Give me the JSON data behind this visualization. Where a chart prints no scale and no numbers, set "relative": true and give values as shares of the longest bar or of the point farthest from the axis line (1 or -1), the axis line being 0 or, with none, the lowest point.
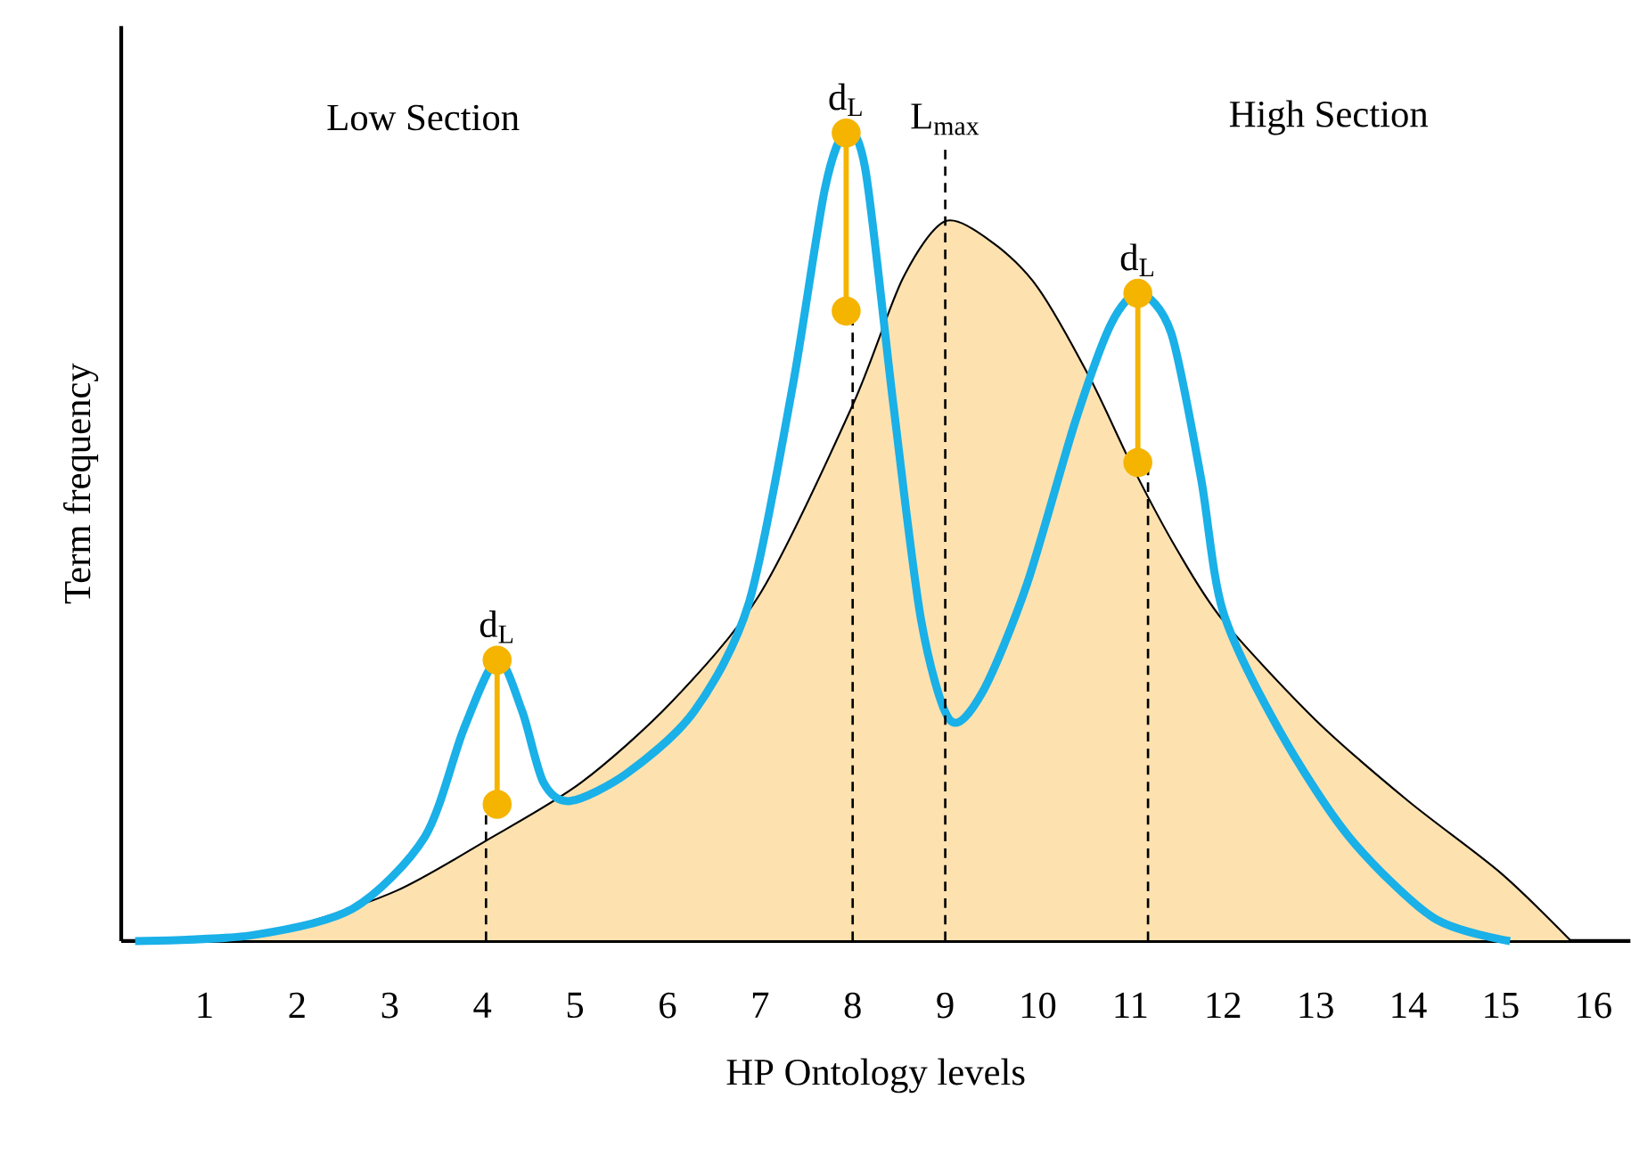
{
  "chart_data": {
    "type": "line",
    "relative": true,
    "xlabel": "HP Ontology levels",
    "ylabel": "Term frequency",
    "xlim": [
      0.1,
      16.4
    ],
    "xticks": [
      1,
      2,
      3,
      4,
      5,
      6,
      7,
      8,
      9,
      10,
      11,
      12,
      13,
      14,
      15,
      16
    ],
    "grid": false,
    "tick_labels": "x",
    "series": [
      {
        "type": "area",
        "color": "#fde2b0",
        "x": [
          0.25,
          1.05,
          1.95,
          3.07,
          4.04,
          5.07,
          6.05,
          7.0,
          8.0,
          8.54,
          9.0,
          9.52,
          10.0,
          10.56,
          11.03,
          11.5,
          12.0,
          13.0,
          14.0,
          15.0,
          15.76
        ],
        "values": [
          0,
          0.002,
          0.018,
          0.062,
          0.124,
          0.196,
          0.296,
          0.429,
          0.662,
          0.818,
          0.889,
          0.862,
          0.807,
          0.696,
          0.584,
          0.484,
          0.396,
          0.273,
          0.173,
          0.084,
          0.0
        ]
      },
      {
        "color": "#1ab0e8",
        "x": [
          0.25,
          1.5,
          2.6,
          3.38,
          3.8,
          4.16,
          4.43,
          4.66,
          4.95,
          5.56,
          6.29,
          6.88,
          7.35,
          7.7,
          7.93,
          8.14,
          8.44,
          8.74,
          9.05,
          9.4,
          9.88,
          10.4,
          10.79,
          11.1,
          11.44,
          11.76,
          12.0,
          12.6,
          13.36,
          14.27,
          15.1
        ],
        "values": [
          0,
          0.007,
          0.04,
          0.129,
          0.262,
          0.347,
          0.284,
          0.196,
          0.173,
          0.207,
          0.284,
          0.418,
          0.684,
          0.929,
          1.0,
          0.951,
          0.662,
          0.396,
          0.273,
          0.307,
          0.44,
          0.64,
          0.762,
          0.8,
          0.751,
          0.573,
          0.407,
          0.262,
          0.129,
          0.029,
          0
        ]
      },
      {
        "color": "#f5b400",
        "marker": "circle",
        "x": [
          4.16,
          4.16
        ],
        "values": [
          0.347,
          0.169
        ]
      },
      {
        "color": "#f5b400",
        "marker": "circle",
        "x": [
          7.93,
          7.93
        ],
        "values": [
          0.998,
          0.778
        ]
      },
      {
        "color": "#f5b400",
        "marker": "circle",
        "x": [
          11.08,
          11.08
        ],
        "values": [
          0.8,
          0.591
        ]
      }
    ],
    "ref_lines": [
      {
        "axis": "x",
        "value": 4.04,
        "color": "#000000",
        "line_style": "dashed"
      },
      {
        "axis": "x",
        "value": 8.0,
        "color": "#000000",
        "line_style": "dashed"
      },
      {
        "axis": "x",
        "value": 9.0,
        "color": "#000000",
        "line_style": "dashed",
        "label": "L$_{max}$"
      },
      {
        "axis": "x",
        "value": 11.19,
        "color": "#000000",
        "line_style": "dashed"
      }
    ],
    "annotations": [
      "Low Section",
      "High Section",
      {
        "text": "d$_{L}$",
        "x": 4.16,
        "y": 0.347
      },
      {
        "text": "d$_{L}$",
        "x": 7.93,
        "y": 0.998
      },
      {
        "text": "d$_{L}$",
        "x": 11.08,
        "y": 0.8
      }
    ]
  }
}
